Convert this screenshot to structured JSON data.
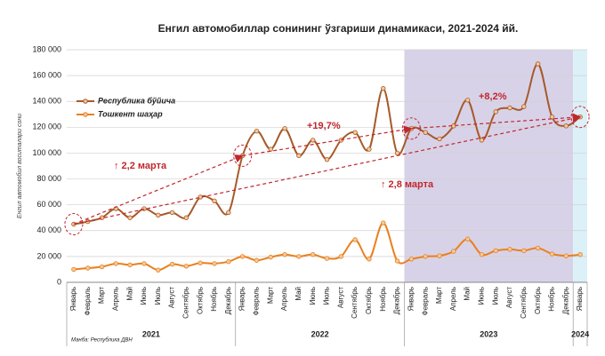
{
  "chart_data": {
    "type": "line",
    "title": "Енгил автомобиллар сонининг ўзгариши динамикаси, 2021-2024 йй.",
    "y_label": "Енгил автомобил воситалари сони",
    "source": "Манба: Республика ДВН",
    "categories": [
      "Январь",
      "Февраль",
      "Март",
      "Апрель",
      "Май",
      "Июнь",
      "Июль",
      "Август",
      "Сентябрь",
      "Октябрь",
      "Ноябрь",
      "Декабрь",
      "Январь",
      "Февраль",
      "Март",
      "Апрель",
      "Май",
      "Июнь",
      "Июль",
      "Август",
      "Сентябрь",
      "Октябрь",
      "Ноябрь",
      "Декабрь",
      "Январь",
      "Февраль",
      "Март",
      "Апрель",
      "Май",
      "Июнь",
      "Июль",
      "Август",
      "Сентябрь",
      "Октябрь",
      "Ноябрь",
      "Декабрь",
      "Январь"
    ],
    "years": [
      "2021",
      "2022",
      "2023",
      "2024"
    ],
    "series": [
      {
        "name": "Республика бўйича",
        "color": "#a65a2a",
        "values": [
          45000,
          47000,
          50000,
          57000,
          50000,
          57000,
          52000,
          54000,
          50000,
          66000,
          63000,
          54000,
          98000,
          117000,
          103000,
          119000,
          98000,
          110000,
          95000,
          110000,
          116000,
          103000,
          150000,
          100000,
          119000,
          116000,
          111000,
          121000,
          141000,
          110000,
          132000,
          135000,
          136000,
          169000,
          128000,
          121000,
          128000
        ]
      },
      {
        "name": "Тошкент шаҳар",
        "color": "#e8801e",
        "values": [
          10000,
          11000,
          12000,
          14500,
          13500,
          14500,
          9500,
          14000,
          12500,
          15000,
          14500,
          16000,
          20000,
          17000,
          19500,
          21500,
          20000,
          21500,
          18500,
          20000,
          33000,
          18000,
          46000,
          16500,
          18000,
          20000,
          20500,
          24000,
          33500,
          21500,
          24500,
          25500,
          24500,
          26500,
          22000,
          20500,
          21500
        ]
      }
    ],
    "annotations": [
      "↑ 2,2 марта",
      "+19,7%",
      "↑ 2,8 марта",
      "+8,2%"
    ],
    "ylim": [
      0,
      180000
    ],
    "yticks": [
      {
        "value": 0,
        "label": "0"
      },
      {
        "value": 20000,
        "label": "20 000"
      },
      {
        "value": 40000,
        "label": "40 000"
      },
      {
        "value": 60000,
        "label": "60 000"
      },
      {
        "value": 80000,
        "label": "80 000"
      },
      {
        "value": 100000,
        "label": "100 000"
      },
      {
        "value": 120000,
        "label": "120 000"
      },
      {
        "value": 140000,
        "label": "140 000"
      },
      {
        "value": 160000,
        "label": "160 000"
      },
      {
        "value": 180000,
        "label": "180 000"
      }
    ],
    "grid": true
  }
}
